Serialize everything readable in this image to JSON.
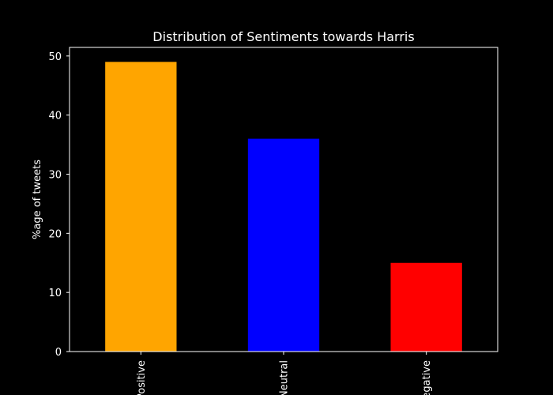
{
  "figure": {
    "background": "#000000",
    "foreground": "#ffffff"
  },
  "chart_data": {
    "type": "bar",
    "title": "Distribution of Sentiments towards Harris",
    "xlabel": "",
    "ylabel": "%age of tweets",
    "categories": [
      "Positive",
      "Neutral",
      "Negative"
    ],
    "values": [
      49,
      36,
      15
    ],
    "colors": [
      "#ffa500",
      "#0000ff",
      "#ff0000"
    ],
    "ylim": [
      0,
      51.45
    ],
    "yticks": [
      0,
      10,
      20,
      30,
      40,
      50
    ],
    "grid": false,
    "legend": "none"
  }
}
